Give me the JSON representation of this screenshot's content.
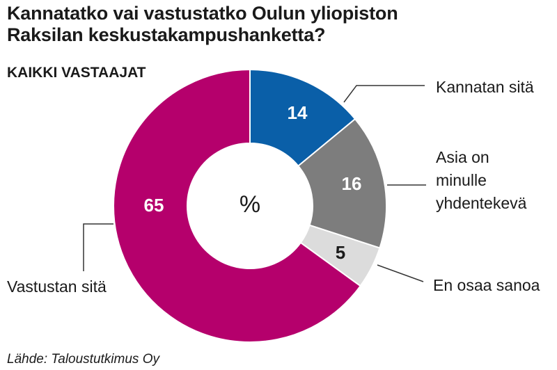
{
  "chart_data": {
    "type": "pie",
    "title": [
      "Kannatatko vai vastustatko Oulun yliopiston",
      "Raksilan keskustakampushanketta?"
    ],
    "subtitle": "KAIKKI VASTAAJAT",
    "center_label": "%",
    "source": "Lähde: Taloustutkimus Oy",
    "slices": [
      {
        "label": "Kannatan sitä",
        "label_lines": [
          "Kannatan sitä"
        ],
        "value": 14,
        "color": "#0a5fa8",
        "value_color": "#ffffff"
      },
      {
        "label": "Asia on minulle yhdentekevä",
        "label_lines": [
          "Asia on",
          "minulle",
          "yhdentekevä"
        ],
        "value": 16,
        "color": "#7d7d7d",
        "value_color": "#ffffff"
      },
      {
        "label": "En osaa sanoa",
        "label_lines": [
          "En osaa sanoa"
        ],
        "value": 5,
        "color": "#dcdcdc",
        "value_color": "#1a1a1a"
      },
      {
        "label": "Vastustan sitä",
        "label_lines": [
          "Vastustan sitä"
        ],
        "value": 65,
        "color": "#b5006c",
        "value_color": "#ffffff"
      }
    ]
  }
}
